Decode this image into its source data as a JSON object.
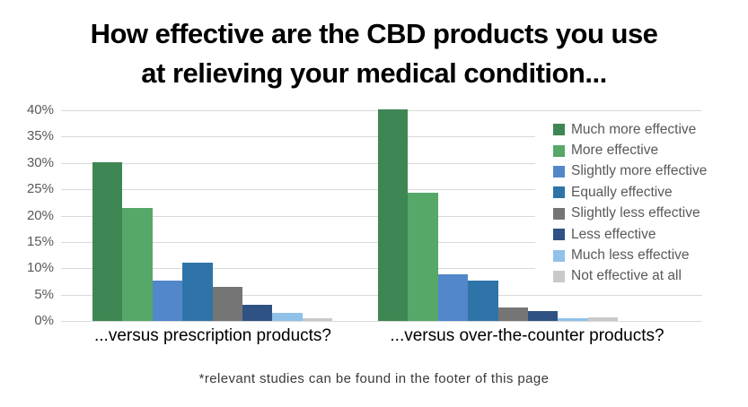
{
  "title": {
    "line1": "How effective are the CBD products you use",
    "line2": "at relieving your medical condition..."
  },
  "footnote": "*relevant studies can be found in the footer of this page",
  "chart_data": {
    "type": "bar",
    "title": "How effective are the CBD products you use at relieving your medical condition...",
    "categories": [
      "...versus prescription products?",
      "...versus over-the-counter products?"
    ],
    "series": [
      {
        "name": "Much more effective",
        "color": "#3E8653",
        "values": [
          30.2,
          40.2
        ]
      },
      {
        "name": "More effective",
        "color": "#55A868",
        "values": [
          21.5,
          24.4
        ]
      },
      {
        "name": "Slightly more effective",
        "color": "#5287CA",
        "values": [
          7.7,
          8.8
        ]
      },
      {
        "name": "Equally effective",
        "color": "#2E74A8",
        "values": [
          11.0,
          7.7
        ]
      },
      {
        "name": "Slightly less effective",
        "color": "#757575",
        "values": [
          6.4,
          2.6
        ]
      },
      {
        "name": "Less effective",
        "color": "#2F5284",
        "values": [
          3.1,
          1.8
        ]
      },
      {
        "name": "Much less effective",
        "color": "#90C1E9",
        "values": [
          1.6,
          0.5
        ]
      },
      {
        "name": "Not effective at all",
        "color": "#C9C9C9",
        "values": [
          0.5,
          0.7
        ]
      }
    ],
    "xlabel": "",
    "ylabel": "",
    "ylim": [
      0,
      40
    ],
    "ytick_step": 5,
    "yticks": [
      "40%",
      "35%",
      "30%",
      "25%",
      "20%",
      "15%",
      "10%",
      "5%",
      "0%"
    ],
    "grid": true,
    "legend_position": "right",
    "gridline_color": "#D9D9D9",
    "axis_text_color": "#595959"
  }
}
